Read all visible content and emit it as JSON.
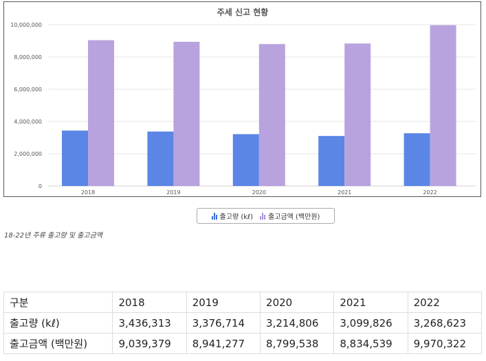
{
  "chart_data": {
    "type": "bar",
    "title": "주세 신고 현황",
    "categories": [
      "2018",
      "2019",
      "2020",
      "2021",
      "2022"
    ],
    "series": [
      {
        "name": "출고량 (kℓ)",
        "color": "#5b86e5",
        "values": [
          3436313,
          3376714,
          3214806,
          3099826,
          3268623
        ]
      },
      {
        "name": "출고금액 (백만원)",
        "color": "#b8a3de",
        "values": [
          9039379,
          8941277,
          8799538,
          8834539,
          9970322
        ]
      }
    ],
    "yticks": [
      "0",
      "2,000,000",
      "4,000,000",
      "6,000,000",
      "8,000,000",
      "10,000,000"
    ],
    "ylim": [
      0,
      10000000
    ],
    "grid": true,
    "legend": "bottom-center"
  },
  "caption": "18-22년 주류 출고량 및 출고금액",
  "table": {
    "header": [
      "구분",
      "2018",
      "2019",
      "2020",
      "2021",
      "2022"
    ],
    "rows": [
      [
        "출고량 (kℓ)",
        "3,436,313",
        "3,376,714",
        "3,214,806",
        "3,099,826",
        "3,268,623"
      ],
      [
        "출고금액 (백만원)",
        "9,039,379",
        "8,941,277",
        "8,799,538",
        "8,834,539",
        "9,970,322"
      ]
    ]
  }
}
